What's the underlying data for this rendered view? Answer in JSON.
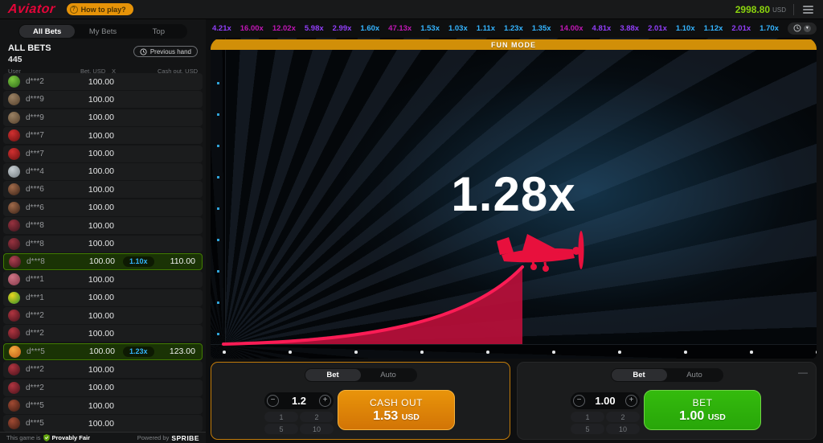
{
  "colors": {
    "logo_red": "#e50539",
    "accent_orange": "#e69308",
    "balance_green": "#8bd40e",
    "tier_low_blue": "#34b4ff",
    "tier_mid_purple": "#913ef8",
    "tier_high_pink": "#c017b4",
    "win_row_green": "#427c02",
    "cashout_button_orange": "#d97b06",
    "bet_button_green": "#2eb309",
    "curve_red": "#e8103d",
    "fun_banner_orange": "#d18f08"
  },
  "topbar": {
    "logo": "Aviator",
    "how_to_play_label": "How to play?",
    "balance": "2998.80",
    "currency": "USD"
  },
  "history": {
    "items": [
      {
        "value": "4.21x",
        "tier": "mid"
      },
      {
        "value": "16.00x",
        "tier": "high"
      },
      {
        "value": "12.02x",
        "tier": "high"
      },
      {
        "value": "5.98x",
        "tier": "mid"
      },
      {
        "value": "2.99x",
        "tier": "mid"
      },
      {
        "value": "1.60x",
        "tier": "low"
      },
      {
        "value": "47.13x",
        "tier": "high"
      },
      {
        "value": "1.53x",
        "tier": "low"
      },
      {
        "value": "1.03x",
        "tier": "low"
      },
      {
        "value": "1.11x",
        "tier": "low"
      },
      {
        "value": "1.23x",
        "tier": "low"
      },
      {
        "value": "1.35x",
        "tier": "low"
      },
      {
        "value": "14.00x",
        "tier": "high"
      },
      {
        "value": "4.81x",
        "tier": "mid"
      },
      {
        "value": "3.88x",
        "tier": "mid"
      },
      {
        "value": "2.01x",
        "tier": "mid"
      },
      {
        "value": "1.10x",
        "tier": "low"
      },
      {
        "value": "1.12x",
        "tier": "low"
      },
      {
        "value": "2.01x",
        "tier": "mid"
      },
      {
        "value": "1.70x",
        "tier": "low"
      }
    ]
  },
  "sidebar": {
    "tabs": [
      {
        "label": "All Bets",
        "active": true
      },
      {
        "label": "My Bets",
        "active": false
      },
      {
        "label": "Top",
        "active": false
      }
    ],
    "title": "ALL BETS",
    "count": "445",
    "previous_hand_label": "Previous hand",
    "columns": {
      "user": "User",
      "bet": "Bet, USD",
      "x": "X",
      "cashout": "Cash out, USD"
    },
    "bets": [
      {
        "user": "d***2",
        "bet": "100.00",
        "avatar": [
          "#7cc93f",
          "#2e6b1a"
        ]
      },
      {
        "user": "d***9",
        "bet": "100.00",
        "avatar": [
          "#9a8163",
          "#55412c"
        ]
      },
      {
        "user": "d***9",
        "bet": "100.00",
        "avatar": [
          "#9a8163",
          "#55412c"
        ]
      },
      {
        "user": "d***7",
        "bet": "100.00",
        "avatar": [
          "#d03030",
          "#6b1111"
        ]
      },
      {
        "user": "d***7",
        "bet": "100.00",
        "avatar": [
          "#d03030",
          "#6b1111"
        ]
      },
      {
        "user": "d***4",
        "bet": "100.00",
        "avatar": [
          "#c7ced2",
          "#747d82"
        ]
      },
      {
        "user": "d***6",
        "bet": "100.00",
        "avatar": [
          "#a06a4a",
          "#3a2317"
        ]
      },
      {
        "user": "d***6",
        "bet": "100.00",
        "avatar": [
          "#a06a4a",
          "#3a2317"
        ]
      },
      {
        "user": "d***8",
        "bet": "100.00",
        "avatar": [
          "#97323f",
          "#3c141c"
        ]
      },
      {
        "user": "d***8",
        "bet": "100.00",
        "avatar": [
          "#97323f",
          "#3c141c"
        ]
      },
      {
        "user": "d***8",
        "bet": "100.00",
        "mult": "1.10x",
        "cashout": "110.00",
        "won": true,
        "avatar": [
          "#b04050",
          "#42141e"
        ]
      },
      {
        "user": "d***1",
        "bet": "100.00",
        "avatar": [
          "#cf7585",
          "#84394a"
        ]
      },
      {
        "user": "d***1",
        "bet": "100.00",
        "avatar": [
          "#ead51f",
          "#2f8d2a"
        ]
      },
      {
        "user": "d***2",
        "bet": "100.00",
        "avatar": [
          "#b03540",
          "#47121b"
        ]
      },
      {
        "user": "d***2",
        "bet": "100.00",
        "avatar": [
          "#b03540",
          "#47121b"
        ]
      },
      {
        "user": "d***5",
        "bet": "100.00",
        "mult": "1.23x",
        "cashout": "123.00",
        "won": true,
        "avatar": [
          "#f5a93e",
          "#c05c17"
        ]
      },
      {
        "user": "d***2",
        "bet": "100.00",
        "avatar": [
          "#b03540",
          "#47121b"
        ]
      },
      {
        "user": "d***2",
        "bet": "100.00",
        "avatar": [
          "#b03540",
          "#47121b"
        ]
      },
      {
        "user": "d***5",
        "bet": "100.00",
        "avatar": [
          "#a04a33",
          "#3f1c12"
        ]
      },
      {
        "user": "d***5",
        "bet": "100.00",
        "avatar": [
          "#a04a33",
          "#3f1c12"
        ]
      }
    ],
    "footer": {
      "prefix": "This game is",
      "link": "Provably Fair",
      "powered_by": "Powered by",
      "brand": "SPRIBE"
    }
  },
  "game": {
    "banner": "FUN MODE",
    "multiplier": "1.28x"
  },
  "panels": [
    {
      "tabs": [
        "Bet",
        "Auto"
      ],
      "active_tab": "Bet",
      "amount": "1.2",
      "quick": [
        "1",
        "2",
        "5",
        "10"
      ],
      "action_label": "CASH OUT",
      "action_amount": "1.53",
      "action_currency": "USD"
    },
    {
      "tabs": [
        "Bet",
        "Auto"
      ],
      "active_tab": "Bet",
      "amount": "1.00",
      "quick": [
        "1",
        "2",
        "5",
        "10"
      ],
      "action_label": "BET",
      "action_amount": "1.00",
      "action_currency": "USD"
    }
  ]
}
